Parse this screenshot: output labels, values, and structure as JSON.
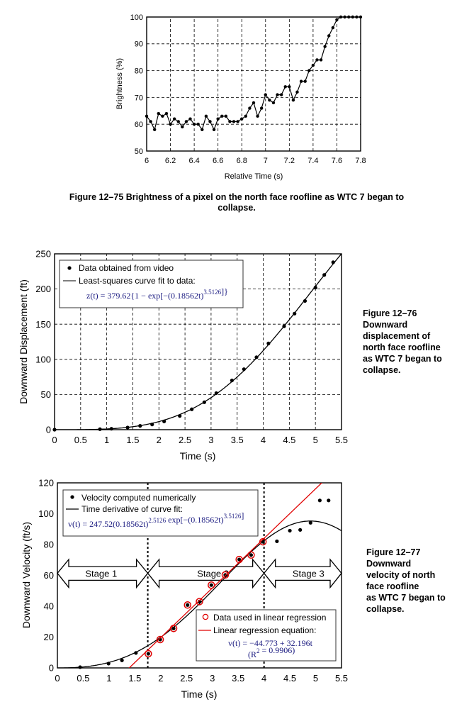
{
  "figures": [
    {
      "caption_lines": [
        "Figure 12–75  Brightness of a pixel on the north face roofline as WTC 7 began to",
        "collapse."
      ]
    },
    {
      "caption_lines": [
        "Figure 12–76",
        "Downward",
        "displacement of",
        "north face roofline",
        "as WTC 7 began to",
        "collapse."
      ]
    },
    {
      "caption_lines": [
        "Figure 12–77",
        "Downward",
        "velocity of north",
        "face roofline",
        "as WTC 7 began to",
        "collapse."
      ]
    }
  ],
  "chart_data": [
    {
      "type": "line",
      "xlabel": "Relative Time (s)",
      "ylabel": "Brightness (%)",
      "xlim": [
        6,
        7.8
      ],
      "ylim": [
        50,
        100
      ],
      "xticks": [
        "6",
        "6.2",
        "6.4",
        "6.6",
        "6.8",
        "7",
        "7.2",
        "7.4",
        "7.6",
        "7.8"
      ],
      "yticks": [
        "50",
        "60",
        "70",
        "80",
        "90",
        "100"
      ],
      "grid": true,
      "x_start": 6,
      "x_step": 0.03333,
      "values": [
        63,
        61,
        58,
        64,
        63,
        64,
        60,
        62,
        61,
        59,
        61,
        62,
        60,
        60,
        58,
        63,
        61,
        58,
        62,
        63,
        63,
        61,
        61,
        61,
        62,
        63,
        66,
        68,
        63,
        66,
        71,
        69,
        68,
        71,
        71,
        74,
        74,
        69,
        72,
        76,
        76,
        80,
        82,
        84,
        84,
        89,
        93,
        96,
        99,
        100,
        100,
        100,
        100,
        100,
        100
      ],
      "marker_color": "#000000"
    },
    {
      "type": "scatter",
      "xlabel": "Time (s)",
      "ylabel": "Downward Displacement (ft)",
      "xlim": [
        0,
        5.5
      ],
      "ylim": [
        0,
        250
      ],
      "xticks": [
        "0",
        "0.5",
        "1",
        "1.5",
        "2",
        "2.5",
        "3",
        "3.5",
        "4",
        "4.5",
        "5",
        "5.5"
      ],
      "yticks": [
        "0",
        "50",
        "100",
        "150",
        "200",
        "250"
      ],
      "grid": true,
      "legend": {
        "placement": "top-left",
        "entries": [
          "Data obtained from video",
          "Least-squares curve fit to data:"
        ],
        "equation": [
          {
            "t": "z(t) = 379.62{1 − exp[−(0.18562t)"
          },
          {
            "t": "3.5126",
            "sup": true
          },
          {
            "t": "]}"
          }
        ]
      },
      "series": [
        {
          "name": "Data obtained from video",
          "kind": "points",
          "x": [
            0,
            0.87,
            1.09,
            1.4,
            1.64,
            1.87,
            2.1,
            2.4,
            2.63,
            2.87,
            3.1,
            3.4,
            3.63,
            3.87,
            4.1,
            4.4,
            4.6,
            4.8,
            5.0,
            5.17,
            5.34
          ],
          "y": [
            0,
            0.7,
            1.3,
            3,
            5.4,
            7.4,
            11.8,
            19.5,
            29,
            39,
            52,
            70,
            86,
            103,
            122.6,
            147,
            165,
            183,
            202,
            220,
            238
          ]
        },
        {
          "name": "Least-squares curve fit to data:",
          "kind": "curve",
          "formula": "z(t)=379.62*(1-exp(-(0.18562t)^3.5126))"
        }
      ]
    },
    {
      "type": "scatter",
      "xlabel": "Time (s)",
      "ylabel": "Downward Velocity (ft/s)",
      "xlim": [
        0,
        5.5
      ],
      "ylim": [
        0,
        120
      ],
      "xticks": [
        "0",
        "0.5",
        "1",
        "1.5",
        "2",
        "2.5",
        "3",
        "3.5",
        "4",
        "4.5",
        "5",
        "5.5"
      ],
      "yticks": [
        "0",
        "20",
        "40",
        "60",
        "80",
        "100",
        "120"
      ],
      "grid": false,
      "stage_boundaries": [
        1.75,
        4.0
      ],
      "stages": [
        {
          "label": "Stage 1",
          "from": 0,
          "to": 1.75
        },
        {
          "label": "Stage 2",
          "from": 1.75,
          "to": 4.0
        },
        {
          "label": "Stage 3",
          "from": 4.0,
          "to": 5.5
        }
      ],
      "legend": {
        "placement": "top-left",
        "entries": [
          "Velocity computed numerically",
          "Time derivative of curve fit:"
        ],
        "equation": [
          {
            "t": "v(t) = 247.52(0.18562t)"
          },
          {
            "t": "2.5126",
            "sup": true
          },
          {
            "t": " exp[−(0.18562t)"
          },
          {
            "t": "3.5126",
            "sup": true
          },
          {
            "t": "]"
          }
        ]
      },
      "legend2": {
        "placement": "bottom-right",
        "entries": [
          "Data used in linear regression",
          "Linear regression equation:"
        ],
        "equation": [
          {
            "t": "v(t) = −44.773 + 32.196t"
          }
        ],
        "r2": [
          {
            "t": "(R"
          },
          {
            "t": "2",
            "sup": true
          },
          {
            "t": " = 0.9906)"
          }
        ]
      },
      "series": [
        {
          "name": "Velocity computed numerically",
          "kind": "points",
          "x": [
            0.44,
            0.99,
            1.25,
            1.52,
            1.76,
            1.99,
            2.25,
            2.52,
            2.75,
            2.98,
            3.25,
            3.52,
            3.75,
            3.98,
            4.25,
            4.5,
            4.7,
            4.9,
            5.08,
            5.25
          ],
          "y": [
            0.5,
            2.8,
            4.9,
            9.7,
            9.2,
            18.4,
            25.6,
            40.8,
            43,
            53.7,
            60.3,
            70.3,
            73.2,
            81.8,
            82.1,
            89,
            89.5,
            94.1,
            108.6,
            108.6
          ]
        },
        {
          "name": "Time derivative of curve fit:",
          "kind": "curve",
          "formula": "v(t)=247.52*(0.18562t)^2.5126*exp(-(0.18562t)^3.5126)"
        },
        {
          "name": "Data used in linear regression",
          "kind": "circles",
          "color": "#e00000",
          "x": [
            1.76,
            1.99,
            2.25,
            2.52,
            2.75,
            2.98,
            3.25,
            3.52,
            3.75,
            3.98
          ],
          "y": [
            9.2,
            18.4,
            25.6,
            40.8,
            43,
            53.7,
            60.3,
            70.3,
            73.2,
            81.8
          ]
        },
        {
          "name": "Linear regression equation:",
          "kind": "line",
          "color": "#e00000",
          "intercept": -44.773,
          "slope": 32.196,
          "r2": 0.9906
        }
      ]
    }
  ]
}
